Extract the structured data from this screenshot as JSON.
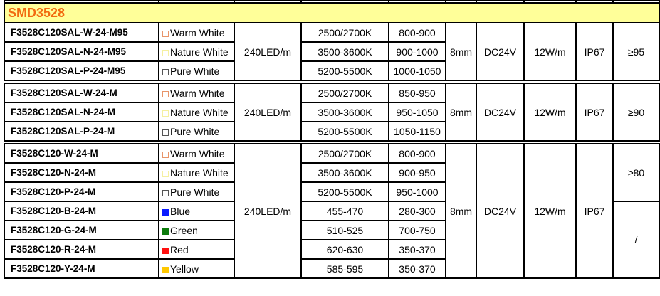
{
  "title": "SMD3528",
  "colors": {
    "title_bg": "#ffff99",
    "title_text": "#f26b10"
  },
  "groups": [
    {
      "led_density": "240LED/m",
      "width": "8mm",
      "voltage": "DC24V",
      "power": "12W/m",
      "ip": "IP67",
      "cri": [
        {
          "value": "≥95",
          "rows": 3
        }
      ],
      "rows": [
        {
          "model": "F3528C120SAL-W-24-M95",
          "color": "Warm White",
          "swatch": "warm",
          "cct": "2500/2700K",
          "lumen": "800-900"
        },
        {
          "model": "F3528C120SAL-N-24-M95",
          "color": "Nature White",
          "swatch": "nature",
          "cct": "3500-3600K",
          "lumen": "900-1000"
        },
        {
          "model": "F3528C120SAL-P-24-M95",
          "color": "Pure White",
          "swatch": "pure",
          "cct": "5200-5500K",
          "lumen": "1000-1050"
        }
      ]
    },
    {
      "led_density": "240LED/m",
      "width": "8mm",
      "voltage": "DC24V",
      "power": "12W/m",
      "ip": "IP67",
      "cri": [
        {
          "value": "≥90",
          "rows": 3
        }
      ],
      "rows": [
        {
          "model": "F3528C120SAL-W-24-M",
          "color": "Warm White",
          "swatch": "warm",
          "cct": "2500/2700K",
          "lumen": "850-950"
        },
        {
          "model": "F3528C120SAL-N-24-M",
          "color": "Nature White",
          "swatch": "nature",
          "cct": "3500-3600K",
          "lumen": "950-1050"
        },
        {
          "model": "F3528C120SAL-P-24-M",
          "color": "Pure White",
          "swatch": "pure",
          "cct": "5200-5500K",
          "lumen": "1050-1150"
        }
      ]
    },
    {
      "led_density": "240LED/m",
      "width": "8mm",
      "voltage": "DC24V",
      "power": "12W/m",
      "ip": "IP67",
      "cri": [
        {
          "value": "≥80",
          "rows": 3
        },
        {
          "value": "/",
          "rows": 4
        }
      ],
      "rows": [
        {
          "model": "F3528C120-W-24-M",
          "color": "Warm White",
          "swatch": "warm",
          "cct": "2500/2700K",
          "lumen": "800-900"
        },
        {
          "model": "F3528C120-N-24-M",
          "color": "Nature White",
          "swatch": "nature",
          "cct": "3500-3600K",
          "lumen": "900-950"
        },
        {
          "model": "F3528C120-P-24-M",
          "color": "Pure White",
          "swatch": "pure",
          "cct": "5200-5500K",
          "lumen": "950-1000"
        },
        {
          "model": "F3528C120-B-24-M",
          "color": "Blue",
          "swatch": "blue",
          "cct": "455-470",
          "lumen": "280-300"
        },
        {
          "model": "F3528C120-G-24-M",
          "color": "Green",
          "swatch": "green",
          "cct": "510-525",
          "lumen": "700-750"
        },
        {
          "model": "F3528C120-R-24-M",
          "color": "Red",
          "swatch": "red",
          "cct": "620-630",
          "lumen": "350-370"
        },
        {
          "model": "F3528C120-Y-24-M",
          "color": "Yellow",
          "swatch": "yellow",
          "cct": "585-595",
          "lumen": "350-370"
        }
      ]
    }
  ],
  "swatches": {
    "warm": {
      "border": "#e8956a",
      "fill": "#ffffff"
    },
    "nature": {
      "border": "#f5f0a0",
      "fill": "#ffffff"
    },
    "pure": {
      "border": "#555555",
      "fill": "#ffffff"
    },
    "blue": {
      "border": "#0a1aff",
      "fill": "#0a1aff"
    },
    "green": {
      "border": "#0b7a0b",
      "fill": "#0b7a0b"
    },
    "red": {
      "border": "#ff1010",
      "fill": "#ff1010"
    },
    "yellow": {
      "border": "#ffc800",
      "fill": "#ffc800"
    }
  }
}
